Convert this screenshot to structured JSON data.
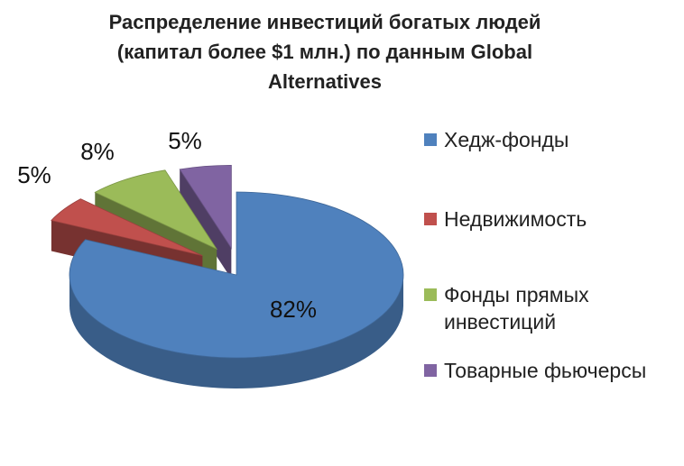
{
  "title": [
    "Распределение инвестиций богатых людей",
    "(капитал более $1 млн.) по данным Global",
    "Alternatives"
  ],
  "chart_data": {
    "type": "pie",
    "style": "3d-exploded",
    "categories": [
      "Хедж-фонды",
      "Недвижимость",
      "Фонды прямых инвестиций",
      "Товарные фьючерсы"
    ],
    "values": [
      82,
      5,
      8,
      5
    ],
    "data_labels": [
      "82%",
      "5%",
      "8%",
      "5%"
    ],
    "colors": [
      "#4f81bd",
      "#c0504d",
      "#9bbb59",
      "#8064a2"
    ],
    "legend_position": "right"
  },
  "legend": [
    {
      "lines": [
        "Хедж-фонды"
      ],
      "color": "#4f81bd"
    },
    {
      "lines": [
        "Недвижимость"
      ],
      "color": "#c0504d"
    },
    {
      "lines": [
        "Фонды прямых",
        "инвестиций"
      ],
      "color": "#9bbb59"
    },
    {
      "lines": [
        "Товарные фьючерсы"
      ],
      "color": "#8064a2"
    }
  ]
}
